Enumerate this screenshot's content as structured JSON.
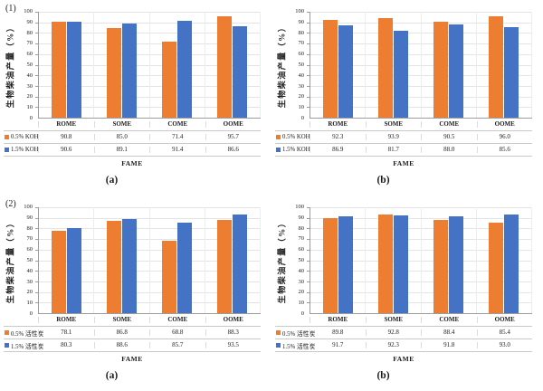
{
  "colors": {
    "series_orange": "#ED7D31",
    "series_blue": "#4472C4",
    "gridline": "#e4e4e4",
    "axis": "#9c9c9c",
    "table_border": "#c9c9c9"
  },
  "chart_data": [
    {
      "type": "bar",
      "panel_label": "(1)",
      "caption": "(a)",
      "categories": [
        "ROME",
        "SOME",
        "COME",
        "OOME"
      ],
      "series": [
        {
          "name": "0.5% KOH",
          "color": "#ED7D31",
          "values": [
            90.8,
            85.0,
            71.4,
            95.7
          ]
        },
        {
          "name": "1.5% KOH",
          "color": "#4472C4",
          "values": [
            90.6,
            89.1,
            91.4,
            86.6
          ]
        }
      ],
      "ylabel": "生物柴油产量（%）",
      "xlabel": "FAME",
      "ylim": [
        0,
        100
      ],
      "ytick_step": 10,
      "grid": true,
      "legend_position": "table-left"
    },
    {
      "type": "bar",
      "panel_label": "",
      "caption": "(b)",
      "categories": [
        "ROME",
        "SOME",
        "COME",
        "OOME"
      ],
      "series": [
        {
          "name": "0.5% KOH",
          "color": "#ED7D31",
          "values": [
            92.3,
            93.9,
            90.5,
            96.0
          ]
        },
        {
          "name": "1.5% KOH",
          "color": "#4472C4",
          "values": [
            86.9,
            81.7,
            88.0,
            85.6
          ]
        }
      ],
      "ylabel": "生物柴油产量（%）",
      "xlabel": "FAME",
      "ylim": [
        0,
        100
      ],
      "ytick_step": 10,
      "grid": true,
      "legend_position": "table-left"
    },
    {
      "type": "bar",
      "panel_label": "(2)",
      "caption": "(a)",
      "categories": [
        "ROME",
        "SOME",
        "COME",
        "OOME"
      ],
      "series": [
        {
          "name": "0.5% 活性炭",
          "color": "#ED7D31",
          "values": [
            78.1,
            86.8,
            68.8,
            88.3
          ]
        },
        {
          "name": "1.5% 活性炭",
          "color": "#4472C4",
          "values": [
            80.3,
            88.6,
            85.7,
            93.5
          ]
        }
      ],
      "ylabel": "生物柴油产量（%）",
      "xlabel": "FAME",
      "ylim": [
        0,
        100
      ],
      "ytick_step": 10,
      "grid": true,
      "legend_position": "table-left"
    },
    {
      "type": "bar",
      "panel_label": "",
      "caption": "(b)",
      "categories": [
        "ROME",
        "SOME",
        "COME",
        "OOME"
      ],
      "series": [
        {
          "name": "0.5% 活性炭",
          "color": "#ED7D31",
          "values": [
            89.8,
            92.8,
            88.4,
            85.4
          ]
        },
        {
          "name": "1.5% 活性炭",
          "color": "#4472C4",
          "values": [
            91.7,
            92.3,
            91.8,
            93.0
          ]
        }
      ],
      "ylabel": "生物柴油产量（%）",
      "xlabel": "FAME",
      "ylim": [
        0,
        100
      ],
      "ytick_step": 10,
      "grid": true,
      "legend_position": "table-left"
    }
  ]
}
